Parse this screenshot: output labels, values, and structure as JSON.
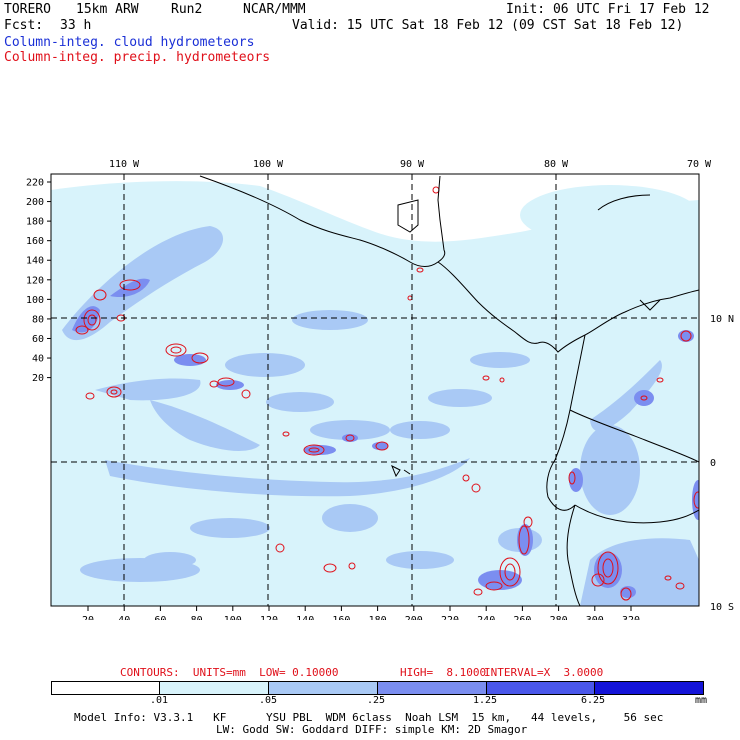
{
  "header": {
    "model": "TORERO",
    "resolution": "15km ARW",
    "run": "Run2",
    "org": "NCAR/MMM",
    "init": "Init: 06 UTC Fri 17 Feb 12",
    "fcst_label": "Fcst:",
    "fcst_value": "33 h",
    "valid": "Valid: 15 UTC Sat 18 Feb 12 (09 CST Sat 18 Feb 12)",
    "legend_cloud": "Column-integ. cloud hydrometeors",
    "legend_precip": "Column-integ. precip. hydrometeors"
  },
  "map": {
    "lon_labels": [
      "110 W",
      "100 W",
      "90 W",
      "80 W",
      "70 W"
    ],
    "lat_labels": [
      "10 N",
      "0",
      "10 S"
    ],
    "y_ticks": [
      "220",
      "200",
      "180",
      "160",
      "140",
      "120",
      "100",
      "80",
      "60",
      "40",
      "20"
    ],
    "x_ticks": [
      "20",
      "40",
      "60",
      "80",
      "100",
      "120",
      "140",
      "160",
      "180",
      "200",
      "220",
      "240",
      "260",
      "280",
      "300",
      "320"
    ]
  },
  "contours": {
    "units": "CONTOURS:  UNITS=mm  LOW= 0.10000",
    "high": "HIGH=  8.1000",
    "interval": "INTERVAL=X  3.0000"
  },
  "colorbar": {
    "labels": [
      ".01",
      ".05",
      ".25",
      "1.25",
      "6.25",
      "mm"
    ],
    "colors": [
      "#ffffff",
      "#d8f3fb",
      "#a9c9f5",
      "#7b8ef0",
      "#4a57ea",
      "#1414d8"
    ]
  },
  "footer": {
    "line1": "Model Info: V3.3.1   KF      YSU PBL  WDM 6class  Noah LSM  15 km,   44 levels,    56 sec",
    "line2": "LW: Godd SW: Goddard DIFF: simple KM: 2D Smagor"
  },
  "colors": {
    "cloud_light": "#d8f3fb",
    "cloud_mid": "#a9c9f5",
    "cloud_dark": "#7b8ef0",
    "precip_contour": "#e0101a",
    "coast": "#000000"
  }
}
